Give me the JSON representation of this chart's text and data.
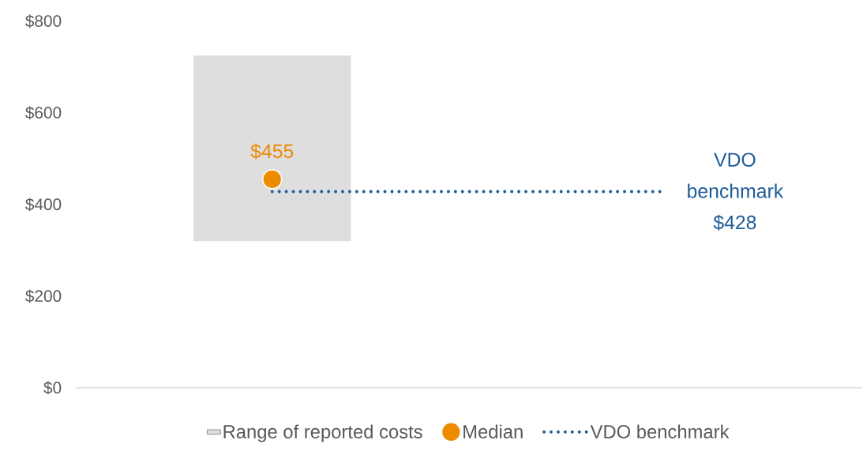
{
  "chart_data": {
    "type": "bar",
    "categories": [
      null,
      null
    ],
    "ylim": [
      0,
      800
    ],
    "yticks": [
      {
        "value": 0,
        "label": "$0"
      },
      {
        "value": 200,
        "label": "$200"
      },
      {
        "value": 400,
        "label": "$400"
      },
      {
        "value": 600,
        "label": "$600"
      },
      {
        "value": 800,
        "label": "$800"
      }
    ],
    "legend": "bottom",
    "grid": false,
    "series": [
      {
        "name": "Range of reported costs",
        "color": "#dedede",
        "values": [
          405,
          null
        ],
        "base": [
          320,
          null
        ]
      },
      {
        "name": "Median",
        "type": "scatter",
        "color": "#ed8b00",
        "marker": "circle",
        "values": [
          455,
          null
        ],
        "value_labels": [
          "$455",
          null
        ]
      },
      {
        "name": "VDO benchmark",
        "type": "line",
        "color": "#1f5c99",
        "line_style": "dotted",
        "marker": "none",
        "values": [
          428,
          428
        ]
      }
    ],
    "annotations": [
      "VDO benchmark $428"
    ]
  }
}
